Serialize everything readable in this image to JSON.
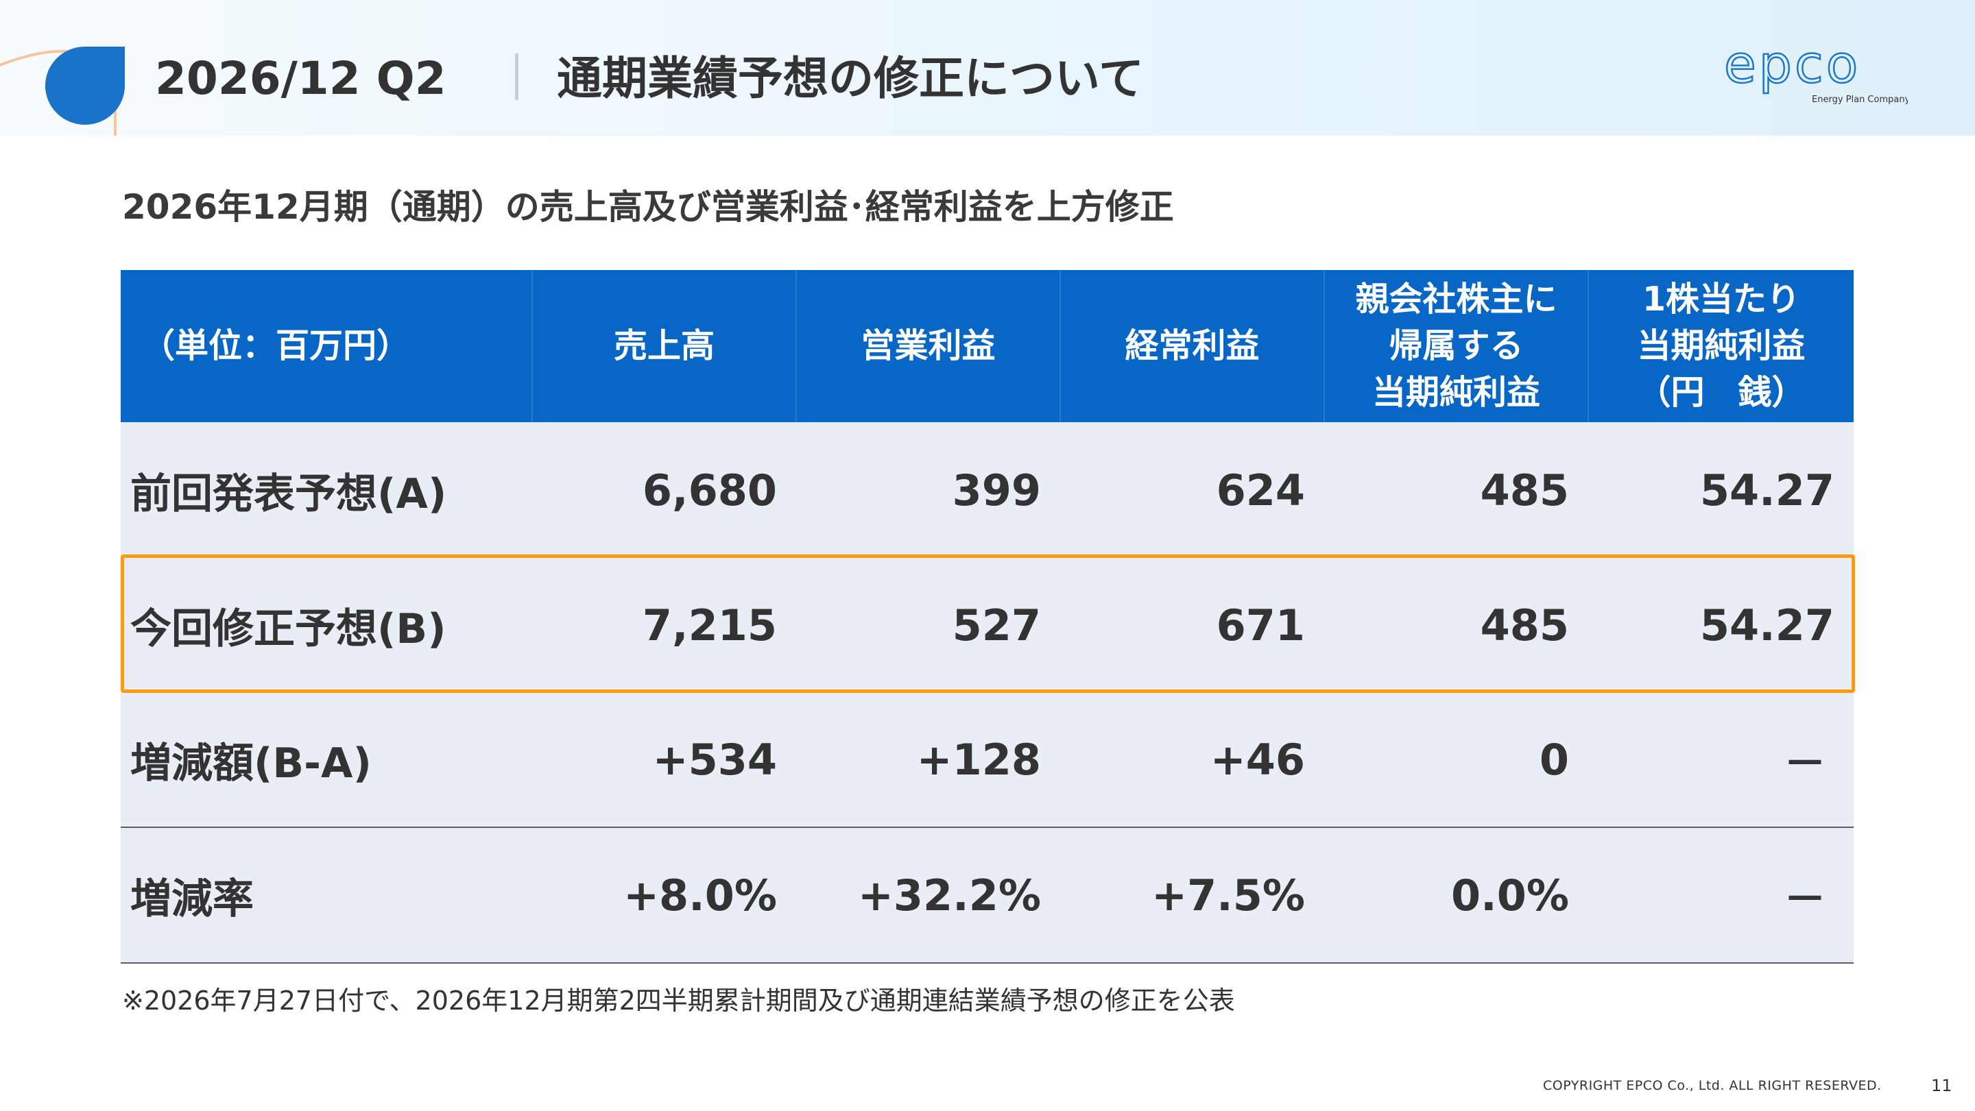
{
  "header": {
    "code": "2026/12 Q2",
    "title": "通期業績予想の修正について",
    "logo_text": "epco",
    "logo_tagline": "Energy Plan Company"
  },
  "subtitle": "2026年12月期（通期）の売上高及び営業利益･経常利益を上方修正",
  "table": {
    "headers": [
      [
        "（単位：百万円）"
      ],
      [
        "売上高"
      ],
      [
        "営業利益"
      ],
      [
        "経常利益"
      ],
      [
        "親会社株主に",
        "帰属する",
        "当期純利益"
      ],
      [
        "1株当たり",
        "当期純利益",
        "（円　銭）"
      ]
    ],
    "rows": [
      {
        "label": "前回発表予想(A)",
        "values": [
          "6,680",
          "399",
          "624",
          "485",
          "54.27"
        ]
      },
      {
        "label": "今回修正予想(B)",
        "values": [
          "7,215",
          "527",
          "671",
          "485",
          "54.27"
        ]
      },
      {
        "label": "増減額(B-A)",
        "values": [
          "+534",
          "+128",
          "+46",
          "0",
          "－"
        ]
      },
      {
        "label": "増減率",
        "values": [
          "+8.0%",
          "+32.2%",
          "+7.5%",
          "0.0%",
          "－"
        ]
      }
    ]
  },
  "footnote": "※2026年7月27日付で、2026年12月期第2四半期累計期間及び通期連結業績予想の修正を公表",
  "footer": {
    "copyright": "COPYRIGHT EPCO Co., Ltd. ALL RIGHT RESERVED.",
    "page": "11"
  },
  "colors": {
    "header_blue": "#0866c6",
    "highlight_orange": "#ff9a0d",
    "row_bg": "#e8edf6",
    "accent_drop": "#1a73c8"
  }
}
